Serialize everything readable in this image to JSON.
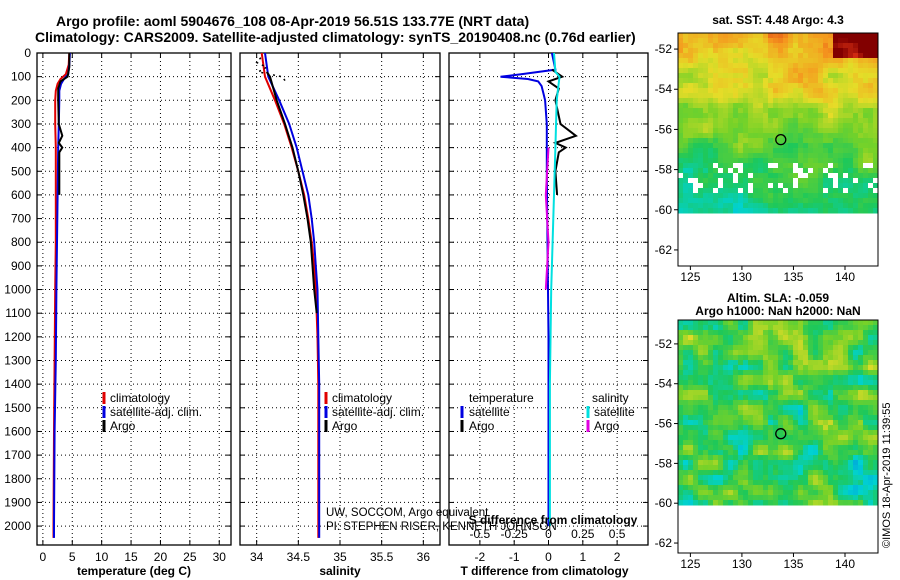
{
  "header": {
    "line1": "Argo profile: aoml 5904676_108 08-Apr-2019 56.51S 133.77E (NRT data)",
    "line2": "Climatology: CARS2009. Satellite-adjusted climatology: synTS_20190408.nc (0.76d earlier)"
  },
  "credits": {
    "line1": "UW, SOCCOM, Argo equivalent",
    "line2": "PI: STEPHEN RISER, KENNETH JOHNSON"
  },
  "stamp": "©IMOS 18-Apr-2019 11:39:55",
  "colors": {
    "climatology": "#e00000",
    "satellite": "#0000e0",
    "argo": "#000000",
    "sal_sat": "#00e0e0",
    "sal_argo": "#e000e0"
  },
  "chart_data": [
    {
      "type": "line",
      "name": "temperature-profile",
      "xlabel": "temperature (deg C)",
      "xlim": [
        -1,
        32
      ],
      "xticks": [
        0,
        5,
        10,
        15,
        20,
        25,
        30
      ],
      "ylim": [
        2080,
        0
      ],
      "yticks": [
        0,
        100,
        200,
        300,
        400,
        500,
        600,
        700,
        800,
        900,
        1000,
        1100,
        1200,
        1300,
        1400,
        1500,
        1600,
        1700,
        1800,
        1900,
        2000
      ],
      "legend": [
        "climatology",
        "satellite-adj. clim.",
        "Argo"
      ],
      "series": [
        {
          "name": "climatology",
          "depth": [
            0,
            50,
            90,
            110,
            130,
            160,
            200,
            300,
            400,
            600,
            800,
            1000,
            1300,
            1600,
            2000,
            2050
          ],
          "values": [
            4.5,
            4.4,
            3.9,
            3.0,
            2.5,
            2.2,
            2.1,
            2.1,
            2.2,
            2.2,
            2.2,
            2.1,
            2.0,
            1.9,
            1.8,
            1.8
          ]
        },
        {
          "name": "satellite-adj. clim.",
          "depth": [
            0,
            50,
            90,
            110,
            130,
            160,
            200,
            300,
            400,
            600,
            800,
            1000,
            1300,
            1600,
            2000,
            2050
          ],
          "values": [
            4.6,
            4.5,
            4.3,
            3.6,
            3.1,
            2.8,
            2.8,
            2.7,
            2.6,
            2.5,
            2.4,
            2.3,
            2.2,
            2.0,
            1.9,
            1.9
          ]
        },
        {
          "name": "Argo",
          "depth": [
            0,
            60,
            100,
            120,
            150,
            200,
            300,
            350,
            380,
            400,
            420,
            500,
            600
          ],
          "values": [
            4.5,
            4.5,
            4.2,
            3.0,
            2.6,
            2.6,
            2.7,
            3.3,
            2.7,
            3.3,
            2.8,
            2.8,
            2.8
          ]
        }
      ]
    },
    {
      "type": "line",
      "name": "salinity-profile",
      "xlabel": "salinity",
      "xlim": [
        33.8,
        36.2
      ],
      "xticks": [
        34,
        34.5,
        35,
        35.5,
        36
      ],
      "ylim": [
        2080,
        0
      ],
      "legend": [
        "climatology",
        "satellite-adj. clim.",
        "Argo"
      ],
      "series": [
        {
          "name": "climatology",
          "depth": [
            0,
            100,
            200,
            300,
            400,
            500,
            600,
            700,
            800,
            900,
            1000,
            1200,
            1400,
            2000,
            2050
          ],
          "values": [
            34.06,
            34.1,
            34.22,
            34.33,
            34.42,
            34.5,
            34.57,
            34.62,
            34.66,
            34.69,
            34.71,
            34.73,
            34.74,
            34.74,
            34.74
          ]
        },
        {
          "name": "satellite-adj. clim.",
          "depth": [
            0,
            100,
            200,
            300,
            400,
            500,
            600,
            700,
            800,
            900,
            1000,
            1200,
            1400,
            2000,
            2050
          ],
          "values": [
            34.1,
            34.14,
            34.27,
            34.39,
            34.48,
            34.55,
            34.62,
            34.66,
            34.69,
            34.71,
            34.73,
            34.74,
            34.75,
            34.75,
            34.75
          ]
        },
        {
          "name": "Argo",
          "depth": [
            80,
            100,
            200,
            300,
            400,
            500,
            600,
            700,
            800,
            900,
            1000,
            1100
          ],
          "values": [
            34.12,
            34.16,
            34.24,
            34.34,
            34.43,
            34.5,
            34.56,
            34.61,
            34.65,
            34.67,
            34.69,
            34.72
          ]
        },
        {
          "name": "satellite-raw",
          "depth": [
            20,
            40,
            60,
            80,
            100,
            120
          ],
          "values": [
            34.05,
            34.0,
            34.12,
            34.02,
            34.3,
            34.35
          ]
        }
      ]
    },
    {
      "type": "line",
      "name": "difference-profile",
      "xlabel": "T difference from climatology",
      "secondary_xlabel": "S difference from climatology",
      "xlim": [
        -2.9,
        2.9
      ],
      "xticks": [
        -2,
        -1,
        0,
        1,
        2
      ],
      "secondary_xticks": [
        -0.5,
        -0.25,
        0,
        0.25,
        0.5
      ],
      "ylim": [
        2080,
        0
      ],
      "legend_temperature_title": "temperature",
      "legend_salinity_title": "salinity",
      "legend_items": {
        "sat": "satellite",
        "argo": "Argo"
      },
      "series": [
        {
          "name": "temperature satellite",
          "depth": [
            0,
            70,
            90,
            100,
            110,
            120,
            140,
            170,
            200,
            300,
            500,
            800,
            1200,
            1600,
            2000
          ],
          "values": [
            0.1,
            0.2,
            -0.8,
            -1.4,
            -0.6,
            -0.3,
            -0.2,
            -0.15,
            -0.1,
            -0.05,
            -0.05,
            -0.03,
            0,
            0,
            0
          ]
        },
        {
          "name": "temperature Argo",
          "depth": [
            70,
            100,
            120,
            150,
            200,
            300,
            350,
            380,
            400,
            420,
            500,
            600
          ],
          "values": [
            0.1,
            0.4,
            0.0,
            0.3,
            0.2,
            0.35,
            0.8,
            0.2,
            0.5,
            0.3,
            0.2,
            0.25
          ]
        },
        {
          "name": "salinity satellite",
          "depth": [
            0,
            80,
            100,
            200,
            400,
            600,
            800,
            1000,
            1400,
            2000
          ],
          "values": [
            0.04,
            0.05,
            0.08,
            0.06,
            0.05,
            0.04,
            0.03,
            0.02,
            0.01,
            0.01
          ]
        },
        {
          "name": "salinity Argo",
          "depth": [
            400,
            600,
            800,
            1000
          ],
          "values": [
            0.0,
            -0.02,
            0.0,
            -0.02
          ]
        }
      ]
    }
  ],
  "maps": [
    {
      "name": "sst-map",
      "title": "sat. SST: 4.48 Argo: 4.3",
      "yticks": [
        -52,
        -54,
        -56,
        -58,
        -60,
        -62
      ],
      "xticks": [
        125,
        130,
        135,
        140
      ],
      "argo": [
        133.77,
        -56.51
      ]
    },
    {
      "name": "sla-map",
      "title1": "Altim. SLA: -0.059",
      "title2": "Argo h1000: NaN h2000: NaN",
      "yticks": [
        -52,
        -54,
        -56,
        -58,
        -60,
        -62
      ],
      "xticks": [
        125,
        130,
        135,
        140
      ],
      "argo": [
        133.77,
        -56.51
      ]
    }
  ]
}
